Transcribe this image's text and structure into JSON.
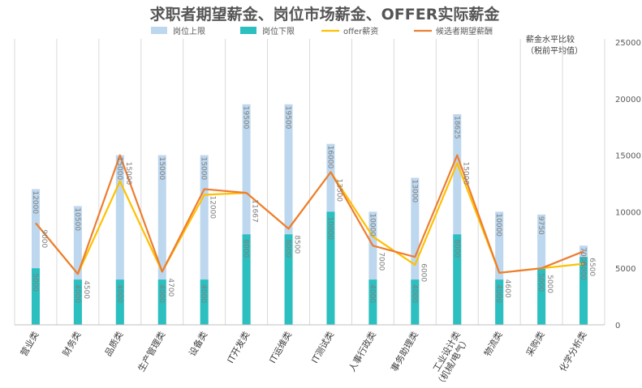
{
  "chart_data": {
    "type": "bar",
    "title": "求职者期望薪金、岗位市场薪金、OFFER实际薪金",
    "note_lines": [
      "薪金水平比较",
      "（税前平均值）"
    ],
    "categories": [
      "营业类",
      "财务类",
      "品质类",
      "生产管理类",
      "设备类",
      "IT开发类",
      "IT运维类",
      "IT测试类",
      "人事行政类",
      "事务助理类",
      "工业设计类（机械/电气）",
      "物流类",
      "采购类",
      "化学分析类"
    ],
    "category_lines": [
      [
        "营业类"
      ],
      [
        "财务类"
      ],
      [
        "品质类"
      ],
      [
        "生产管理类"
      ],
      [
        "设备类"
      ],
      [
        "IT开发类"
      ],
      [
        "IT运维类"
      ],
      [
        "IT测试类"
      ],
      [
        "人事行政类"
      ],
      [
        "事务助理类"
      ],
      [
        "工业设计类",
        "（机械/电气）"
      ],
      [
        "物流类"
      ],
      [
        "采购类"
      ],
      [
        "化学分析类"
      ]
    ],
    "series": [
      {
        "name": "岗位上限",
        "kind": "bar",
        "color": "#bdd7ee",
        "values": [
          12000,
          10500,
          15000,
          15000,
          15000,
          19500,
          19500,
          16000,
          10000,
          13000,
          18625,
          10000,
          9750,
          7000
        ]
      },
      {
        "name": "岗位下限",
        "kind": "bar",
        "color": "#2bbfbf",
        "values": [
          5000,
          4000,
          4000,
          4000,
          4000,
          8000,
          8000,
          10000,
          4000,
          4000,
          8000,
          4000,
          5000,
          6000
        ]
      },
      {
        "name": "offer薪资",
        "kind": "line",
        "color": "#ffc000",
        "values": [
          9000,
          4500,
          12700,
          4700,
          11500,
          11667,
          8500,
          13500,
          7800,
          5300,
          14300,
          4600,
          5000,
          5400
        ]
      },
      {
        "name": "候选者期望薪酬",
        "kind": "line",
        "color": "#ed7d31",
        "values": [
          9000,
          4500,
          15000,
          4700,
          12000,
          11667,
          8500,
          13500,
          7000,
          6000,
          15000,
          4600,
          5000,
          6500
        ]
      }
    ],
    "data_labels": {
      "upper": [
        "12000",
        "10500",
        "15000",
        "15000",
        "15000",
        "19500",
        "19500",
        "16000",
        "10000",
        "13000",
        "18625",
        "10000",
        "9750",
        "7000"
      ],
      "mid": [
        "9000",
        "4500",
        "15000",
        "4700",
        "12000",
        "11667",
        "8500",
        "13500",
        "7000",
        "6000",
        "15000",
        "4600",
        "5000",
        "6500"
      ],
      "lower": [
        "5000",
        "4000",
        "4000",
        "4000",
        "4000",
        "8000",
        "8000",
        "10000",
        "4000",
        "4000",
        "8000",
        "4000",
        "5000",
        "6000"
      ]
    },
    "y_ticks": [
      "0",
      "5000",
      "10000",
      "15000",
      "20000",
      "25000"
    ],
    "ylim": [
      0,
      25000
    ],
    "y_axis_side": "right",
    "grid": "vertical category separators",
    "legend_position": "top"
  }
}
